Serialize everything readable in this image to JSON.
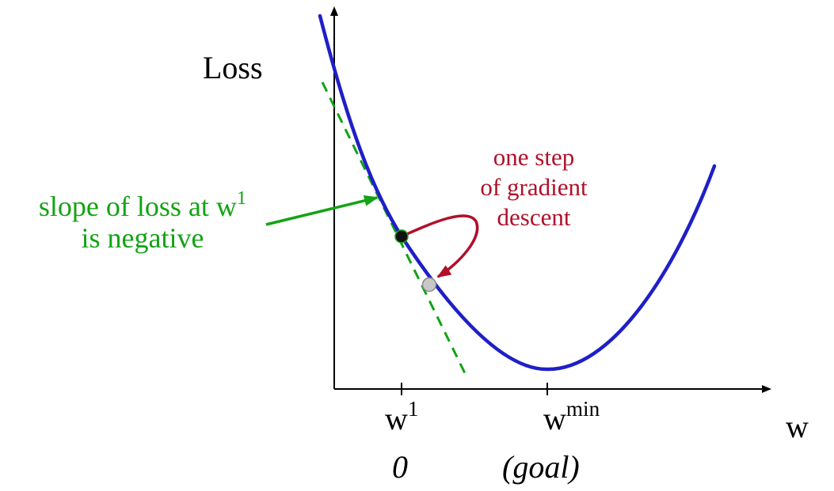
{
  "colors": {
    "axis": "#000000",
    "curve": "#1f1fc8",
    "tangent": "#13a313",
    "step": "#b0102a",
    "current_point": "#111111",
    "next_point": "#c8c8c8",
    "text": "#000000"
  },
  "axes": {
    "y_label": "Loss",
    "x_label": "w"
  },
  "ticks": {
    "w1": {
      "base": "w",
      "sup": "1",
      "value": "0"
    },
    "wmin": {
      "base": "w",
      "sup": "min",
      "note": "(goal)"
    }
  },
  "annotations": {
    "slope": {
      "line1_base": "slope of loss at w",
      "line1_sup": "1",
      "line2": "is negative"
    },
    "step": {
      "line1": "one step",
      "line2": "of gradient",
      "line3": "descent"
    }
  }
}
